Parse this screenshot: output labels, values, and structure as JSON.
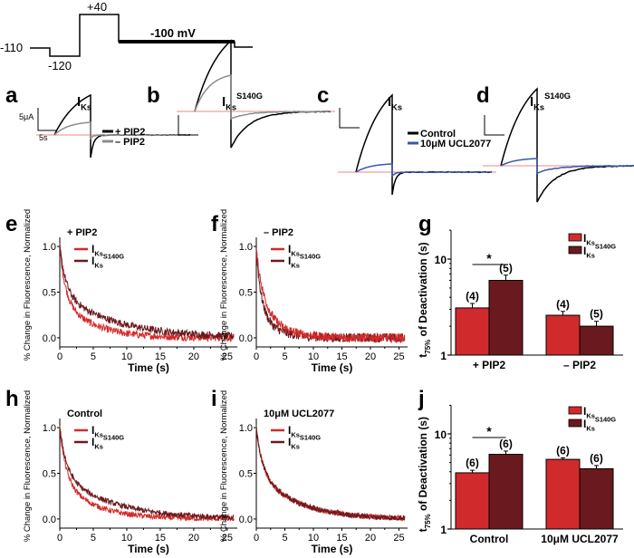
{
  "protocol": {
    "labels": {
      "hold": "-110",
      "pre": "-120",
      "step": "+40",
      "tail": "-100 mV"
    },
    "voltages_mV": [
      -110,
      -120,
      40,
      -100,
      -110
    ]
  },
  "traces": {
    "panels": [
      {
        "letter": "a",
        "title": "I",
        "title_sub": "Ks",
        "title_sup": "",
        "scale_y": "5μA",
        "scale_x": "5s",
        "legend": [
          {
            "label": "+ PIP2",
            "color": "#000000"
          },
          {
            "label": "– PIP2",
            "color": "#8c8c8c"
          }
        ]
      },
      {
        "letter": "b",
        "title": "I",
        "title_sub": "Ks",
        "title_sup": "S140G",
        "scale_y": "",
        "scale_x": "",
        "legend": []
      },
      {
        "letter": "c",
        "title": "I",
        "title_sub": "Ks",
        "title_sup": "",
        "scale_y": "",
        "scale_x": "",
        "legend": [
          {
            "label": "Control",
            "color": "#000000"
          },
          {
            "label": "10μM UCL2077",
            "color": "#3a56b0"
          }
        ]
      },
      {
        "letter": "d",
        "title": "I",
        "title_sub": "Ks",
        "title_sup": "S140G",
        "scale_y": "",
        "scale_x": "",
        "legend": []
      }
    ],
    "baseline_color": "#e06060"
  },
  "colors": {
    "IKs": "#d42a2a",
    "IKsS140G": "#6b1a1f",
    "bar_IKs": "#d12a2c",
    "bar_S140G": "#6a1a1e"
  },
  "chart_data": [
    {
      "panel": "e",
      "type": "line",
      "title": "+ PIP2",
      "xlabel": "Time (s)",
      "ylabel": "% Change in Fluorescence, Normalized",
      "xlim": [
        0,
        26.5
      ],
      "ylim": [
        -0.1,
        1.1
      ],
      "xticks": [
        0,
        5,
        10,
        15,
        20,
        25
      ],
      "yticks": [
        0.0,
        0.5,
        1.0
      ],
      "ytick_labels": [
        "0.0",
        "0.5",
        "1.0"
      ],
      "legend": {
        "placement": "top-left",
        "entries": [
          {
            "label": "I",
            "sub": "Ks",
            "sup": ""
          },
          {
            "label": "I",
            "sub": "Ks",
            "sup": "S140G"
          }
        ]
      },
      "series": [
        {
          "name": "IKs",
          "model": "biexponential",
          "a1": 0.55,
          "tau1": 0.8,
          "a2": 0.45,
          "tau2": 4.5,
          "noise": 0.04
        },
        {
          "name": "IKs S140G",
          "model": "biexponential",
          "a1": 0.5,
          "tau1": 0.9,
          "a2": 0.5,
          "tau2": 8.0,
          "noise": 0.04
        }
      ]
    },
    {
      "panel": "f",
      "type": "line",
      "title": "– PIP2",
      "xlabel": "Time (s)",
      "ylabel": "% Change in Fluorescence, Normalized",
      "xlim": [
        0,
        26.5
      ],
      "ylim": [
        -0.1,
        1.1
      ],
      "xticks": [
        0,
        5,
        10,
        15,
        20,
        25
      ],
      "yticks": [
        0.0,
        0.5,
        1.0
      ],
      "ytick_labels": [
        "0.0",
        "0.5",
        "1.0"
      ],
      "legend": {
        "placement": "top-left",
        "entries": [
          {
            "label": "I",
            "sub": "Ks",
            "sup": ""
          },
          {
            "label": "I",
            "sub": "Ks",
            "sup": "S140G"
          }
        ]
      },
      "series": [
        {
          "name": "IKs",
          "model": "biexponential",
          "a1": 0.55,
          "tau1": 1.3,
          "a2": 0.4,
          "tau2": 3.5,
          "noise": 0.05
        },
        {
          "name": "IKs S140G",
          "model": "biexponential",
          "a1": 0.65,
          "tau1": 0.9,
          "a2": 0.3,
          "tau2": 3.0,
          "noise": 0.05
        }
      ]
    },
    {
      "panel": "g",
      "type": "bar",
      "scale": "log",
      "categories": [
        "+ PIP2",
        "– PIP2"
      ],
      "ylabel": "t75% of Deactivation (s)",
      "ylim": [
        1,
        20
      ],
      "yticks": [
        1,
        10
      ],
      "ytick_labels": [
        "1",
        "10"
      ],
      "legend": {
        "placement": "top-right",
        "entries": [
          {
            "label": "I",
            "sub": "Ks",
            "sup": ""
          },
          {
            "label": "I",
            "sub": "Ks",
            "sup": "S140G"
          }
        ]
      },
      "series": [
        {
          "name": "IKs",
          "values": [
            3.1,
            2.6
          ],
          "errors": [
            0.35,
            0.25
          ],
          "n_labels": [
            "(4)",
            "(4)"
          ]
        },
        {
          "name": "IKs S140G",
          "values": [
            6.0,
            2.0
          ],
          "errors": [
            0.8,
            0.25
          ],
          "n_labels": [
            "(5)",
            "(5)"
          ]
        }
      ],
      "significance": [
        {
          "between": "+ PIP2",
          "label": "*"
        }
      ]
    },
    {
      "panel": "h",
      "type": "line",
      "title": "Control",
      "xlabel": "Time (s)",
      "ylabel": "% Change in Fluorescence, Normalized",
      "xlim": [
        0,
        26.5
      ],
      "ylim": [
        -0.1,
        1.1
      ],
      "xticks": [
        0,
        5,
        10,
        15,
        20,
        25
      ],
      "yticks": [
        0.0,
        0.5,
        1.0
      ],
      "ytick_labels": [
        "0.0",
        "0.5",
        "1.0"
      ],
      "legend": {
        "placement": "top-left",
        "entries": [
          {
            "label": "I",
            "sub": "Ks",
            "sup": ""
          },
          {
            "label": "I",
            "sub": "Ks",
            "sup": "S140G"
          }
        ]
      },
      "series": [
        {
          "name": "IKs",
          "model": "biexponential",
          "a1": 0.55,
          "tau1": 0.9,
          "a2": 0.45,
          "tau2": 4.8,
          "noise": 0.03
        },
        {
          "name": "IKs S140G",
          "model": "biexponential",
          "a1": 0.5,
          "tau1": 1.0,
          "a2": 0.5,
          "tau2": 7.5,
          "noise": 0.03
        }
      ]
    },
    {
      "panel": "i",
      "type": "line",
      "title": "10μM UCL2077",
      "xlabel": "Time (s)",
      "ylabel": "% Change in Fluorescence, Normalized",
      "xlim": [
        0,
        26.5
      ],
      "ylim": [
        -0.1,
        1.1
      ],
      "xticks": [
        0,
        5,
        10,
        15,
        20,
        25
      ],
      "yticks": [
        0.0,
        0.5,
        1.0
      ],
      "ytick_labels": [
        "0.0",
        "0.5",
        "1.0"
      ],
      "legend": {
        "placement": "top-left",
        "entries": [
          {
            "label": "I",
            "sub": "Ks",
            "sup": ""
          },
          {
            "label": "I",
            "sub": "Ks",
            "sup": "S140G"
          }
        ]
      },
      "series": [
        {
          "name": "IKs",
          "model": "biexponential",
          "a1": 0.45,
          "tau1": 1.0,
          "a2": 0.55,
          "tau2": 6.5,
          "noise": 0.03
        },
        {
          "name": "IKs S140G",
          "model": "biexponential",
          "a1": 0.45,
          "tau1": 1.0,
          "a2": 0.55,
          "tau2": 6.5,
          "noise": 0.03
        }
      ]
    },
    {
      "panel": "j",
      "type": "bar",
      "scale": "log",
      "categories": [
        "Control",
        "10μM UCL2077"
      ],
      "ylabel": "t75% of Deactivation (s)",
      "ylim": [
        1,
        20
      ],
      "yticks": [
        1,
        10
      ],
      "ytick_labels": [
        "1",
        "10"
      ],
      "legend": {
        "placement": "top-right",
        "entries": [
          {
            "label": "I",
            "sub": "Ks",
            "sup": ""
          },
          {
            "label": "I",
            "sub": "Ks",
            "sup": "S140G"
          }
        ]
      },
      "series": [
        {
          "name": "IKs",
          "values": [
            3.9,
            5.4
          ],
          "errors": [
            0.25,
            0.2
          ],
          "n_labels": [
            "(6)",
            "(6)"
          ]
        },
        {
          "name": "IKs S140G",
          "values": [
            6.1,
            4.3
          ],
          "errors": [
            0.5,
            0.35
          ],
          "n_labels": [
            "(6)",
            "(6)"
          ]
        }
      ],
      "significance": [
        {
          "between": "Control",
          "label": "*"
        }
      ]
    }
  ]
}
